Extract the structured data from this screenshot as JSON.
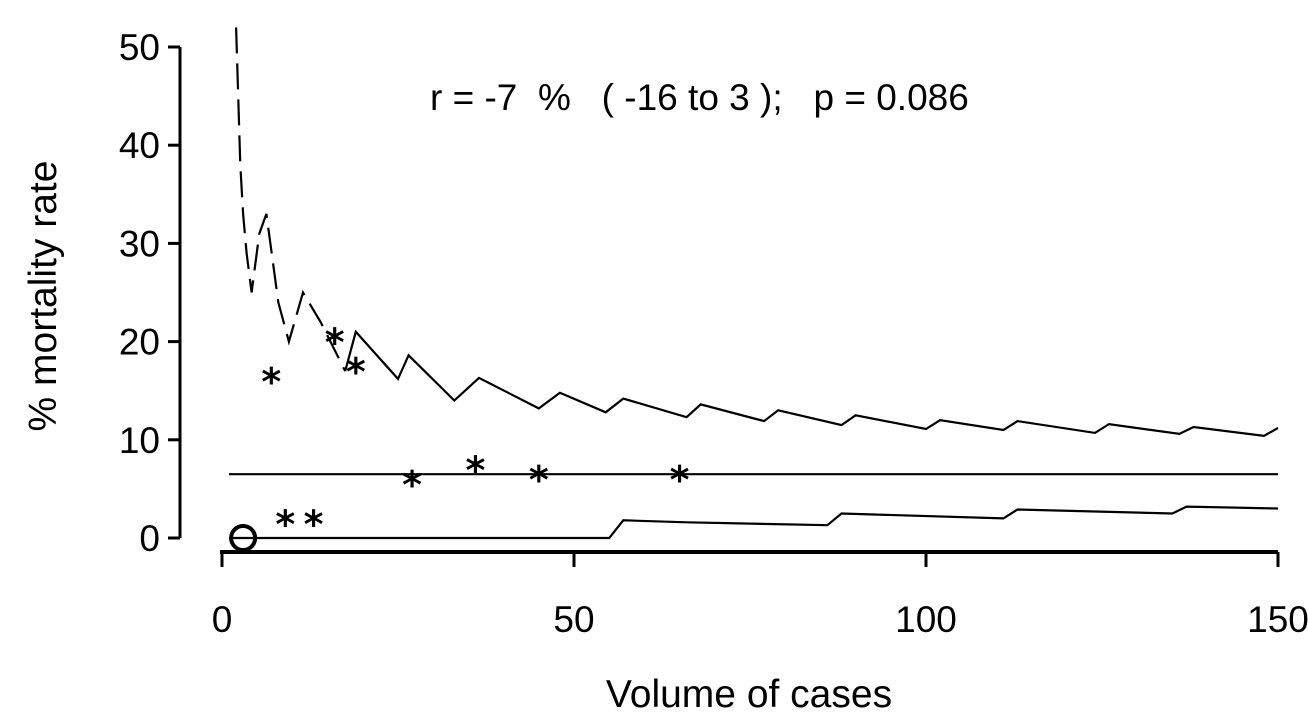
{
  "chart_data": {
    "type": "scatter",
    "title": "",
    "xlabel": "Volume of cases",
    "ylabel": "% mortality rate",
    "xlim": [
      0,
      150
    ],
    "ylim": [
      0,
      50
    ],
    "x_ticks": [
      0,
      50,
      100,
      150
    ],
    "x_tick_labels": [
      "0",
      "50",
      "100",
      "150"
    ],
    "y_ticks": [
      0,
      10,
      20,
      30,
      40,
      50
    ],
    "y_tick_labels": [
      "0",
      "10",
      "20",
      "30",
      "40",
      "50"
    ],
    "annotation": "r = -7  %   ( -16 to 3 );   p = 0.086",
    "grid": false,
    "points": [
      {
        "x": 3,
        "y": 0,
        "marker": "O"
      },
      {
        "x": 7,
        "y": 16,
        "marker": "*"
      },
      {
        "x": 9,
        "y": 1.5,
        "marker": "*"
      },
      {
        "x": 13,
        "y": 1.5,
        "marker": "*"
      },
      {
        "x": 16,
        "y": 20,
        "marker": "*"
      },
      {
        "x": 19,
        "y": 17,
        "marker": "*"
      },
      {
        "x": 27,
        "y": 5.5,
        "marker": "*"
      },
      {
        "x": 36,
        "y": 7,
        "marker": "*"
      },
      {
        "x": 45,
        "y": 6,
        "marker": "*"
      },
      {
        "x": 65,
        "y": 6,
        "marker": "*"
      }
    ],
    "center_line": {
      "y": 6.5,
      "x_range": [
        1,
        150
      ]
    },
    "upper_limit": {
      "dashed_until_x": 18,
      "x": [
        2,
        2.3,
        2.6,
        3,
        3.5,
        4.2,
        5.3,
        6.3,
        8,
        9.5,
        11.5,
        14,
        17.5,
        19,
        25,
        26.5,
        33,
        36.5,
        45,
        48,
        54.5,
        57,
        66,
        68,
        77,
        79,
        88,
        90,
        100,
        102,
        111,
        113,
        124,
        126,
        136,
        138,
        148,
        150
      ],
      "y": [
        52,
        45,
        38,
        33,
        29,
        25,
        31,
        33,
        24,
        20,
        25,
        22,
        17,
        21,
        16.2,
        18.6,
        14,
        16.3,
        13.2,
        14.8,
        12.8,
        14.2,
        12.3,
        13.6,
        11.9,
        13.0,
        11.5,
        12.5,
        11.1,
        12.0,
        11.0,
        11.9,
        10.7,
        11.6,
        10.6,
        11.3,
        10.4,
        11.2
      ]
    },
    "lower_limit": {
      "x": [
        1,
        55,
        57,
        66,
        86,
        88,
        111,
        113,
        135,
        137,
        150
      ],
      "y": [
        0,
        0,
        1.8,
        1.6,
        1.3,
        2.5,
        2.0,
        2.9,
        2.5,
        3.2,
        3.0
      ]
    }
  }
}
